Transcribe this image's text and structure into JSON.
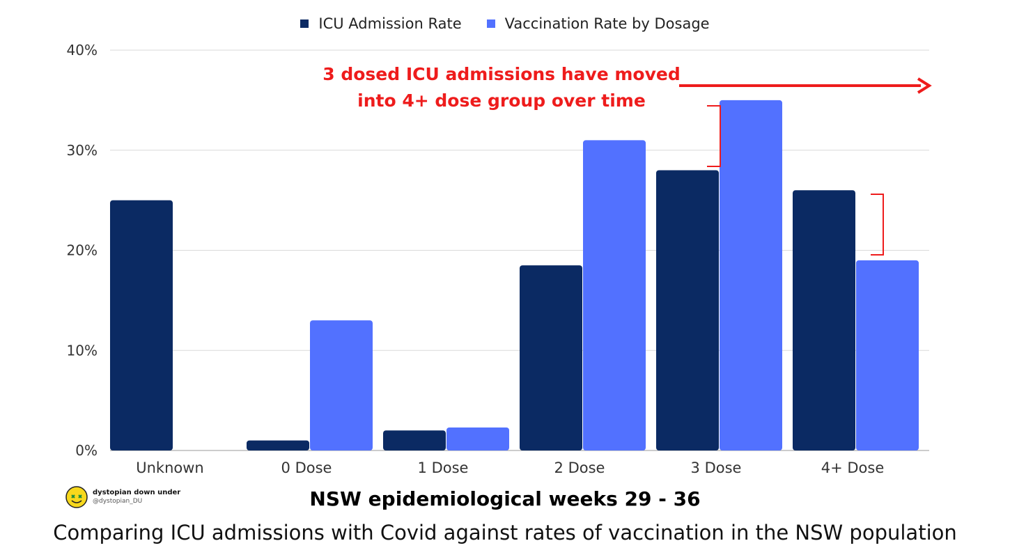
{
  "chart_data": {
    "type": "bar",
    "categories": [
      "Unknown",
      "0 Dose",
      "1 Dose",
      "2 Dose",
      "3 Dose",
      "4+ Dose"
    ],
    "series": [
      {
        "name": "ICU Admission Rate",
        "color": "#0b2a63",
        "values": [
          25,
          1,
          2,
          18.5,
          28,
          26
        ]
      },
      {
        "name": "Vaccination Rate by Dosage",
        "color": "#5271ff",
        "values": [
          0,
          13,
          2.3,
          31,
          35,
          19
        ]
      }
    ],
    "y_ticks": [
      "0%",
      "10%",
      "20%",
      "30%",
      "40%"
    ],
    "y_tick_values": [
      0,
      10,
      20,
      30,
      40
    ],
    "ylim": [
      0,
      40
    ],
    "annotation": {
      "line1": "3 dosed ICU admissions have moved",
      "line2": "into 4+ dose group over time",
      "color": "#ee1c1c"
    },
    "title": "NSW epidemiological weeks 29 - 36",
    "caption": "Comparing ICU admissions with Covid against rates of vaccination in the NSW population"
  },
  "brand": {
    "name": "dystopian down under",
    "handle": "@dystopian_DU",
    "logo_icon": "yellow-smiley-icon"
  }
}
